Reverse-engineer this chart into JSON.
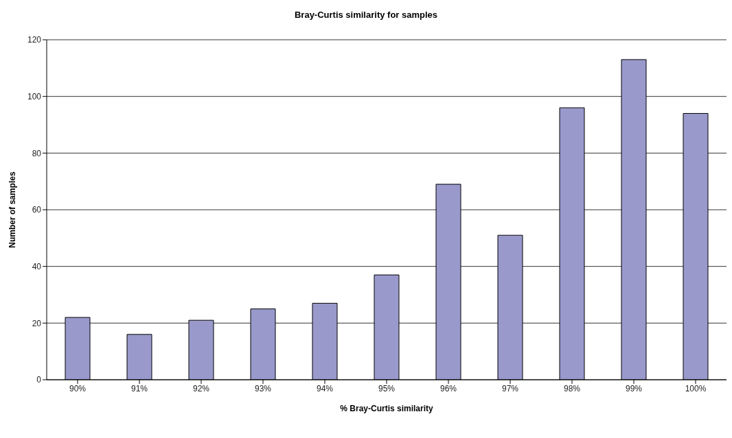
{
  "chart_data": {
    "type": "bar",
    "title": "Bray-Curtis similarity for samples",
    "xlabel": "% Bray-Curtis similarity",
    "ylabel": "Number of samples",
    "categories": [
      "90%",
      "91%",
      "92%",
      "93%",
      "94%",
      "95%",
      "96%",
      "97%",
      "98%",
      "99%",
      "100%"
    ],
    "values": [
      22,
      16,
      21,
      25,
      27,
      37,
      69,
      51,
      96,
      113,
      94
    ],
    "color": "#9999cc",
    "ylim": [
      0,
      120
    ],
    "yticks": [
      0,
      20,
      40,
      60,
      80,
      100,
      120
    ],
    "grid": "y",
    "legend": false
  }
}
